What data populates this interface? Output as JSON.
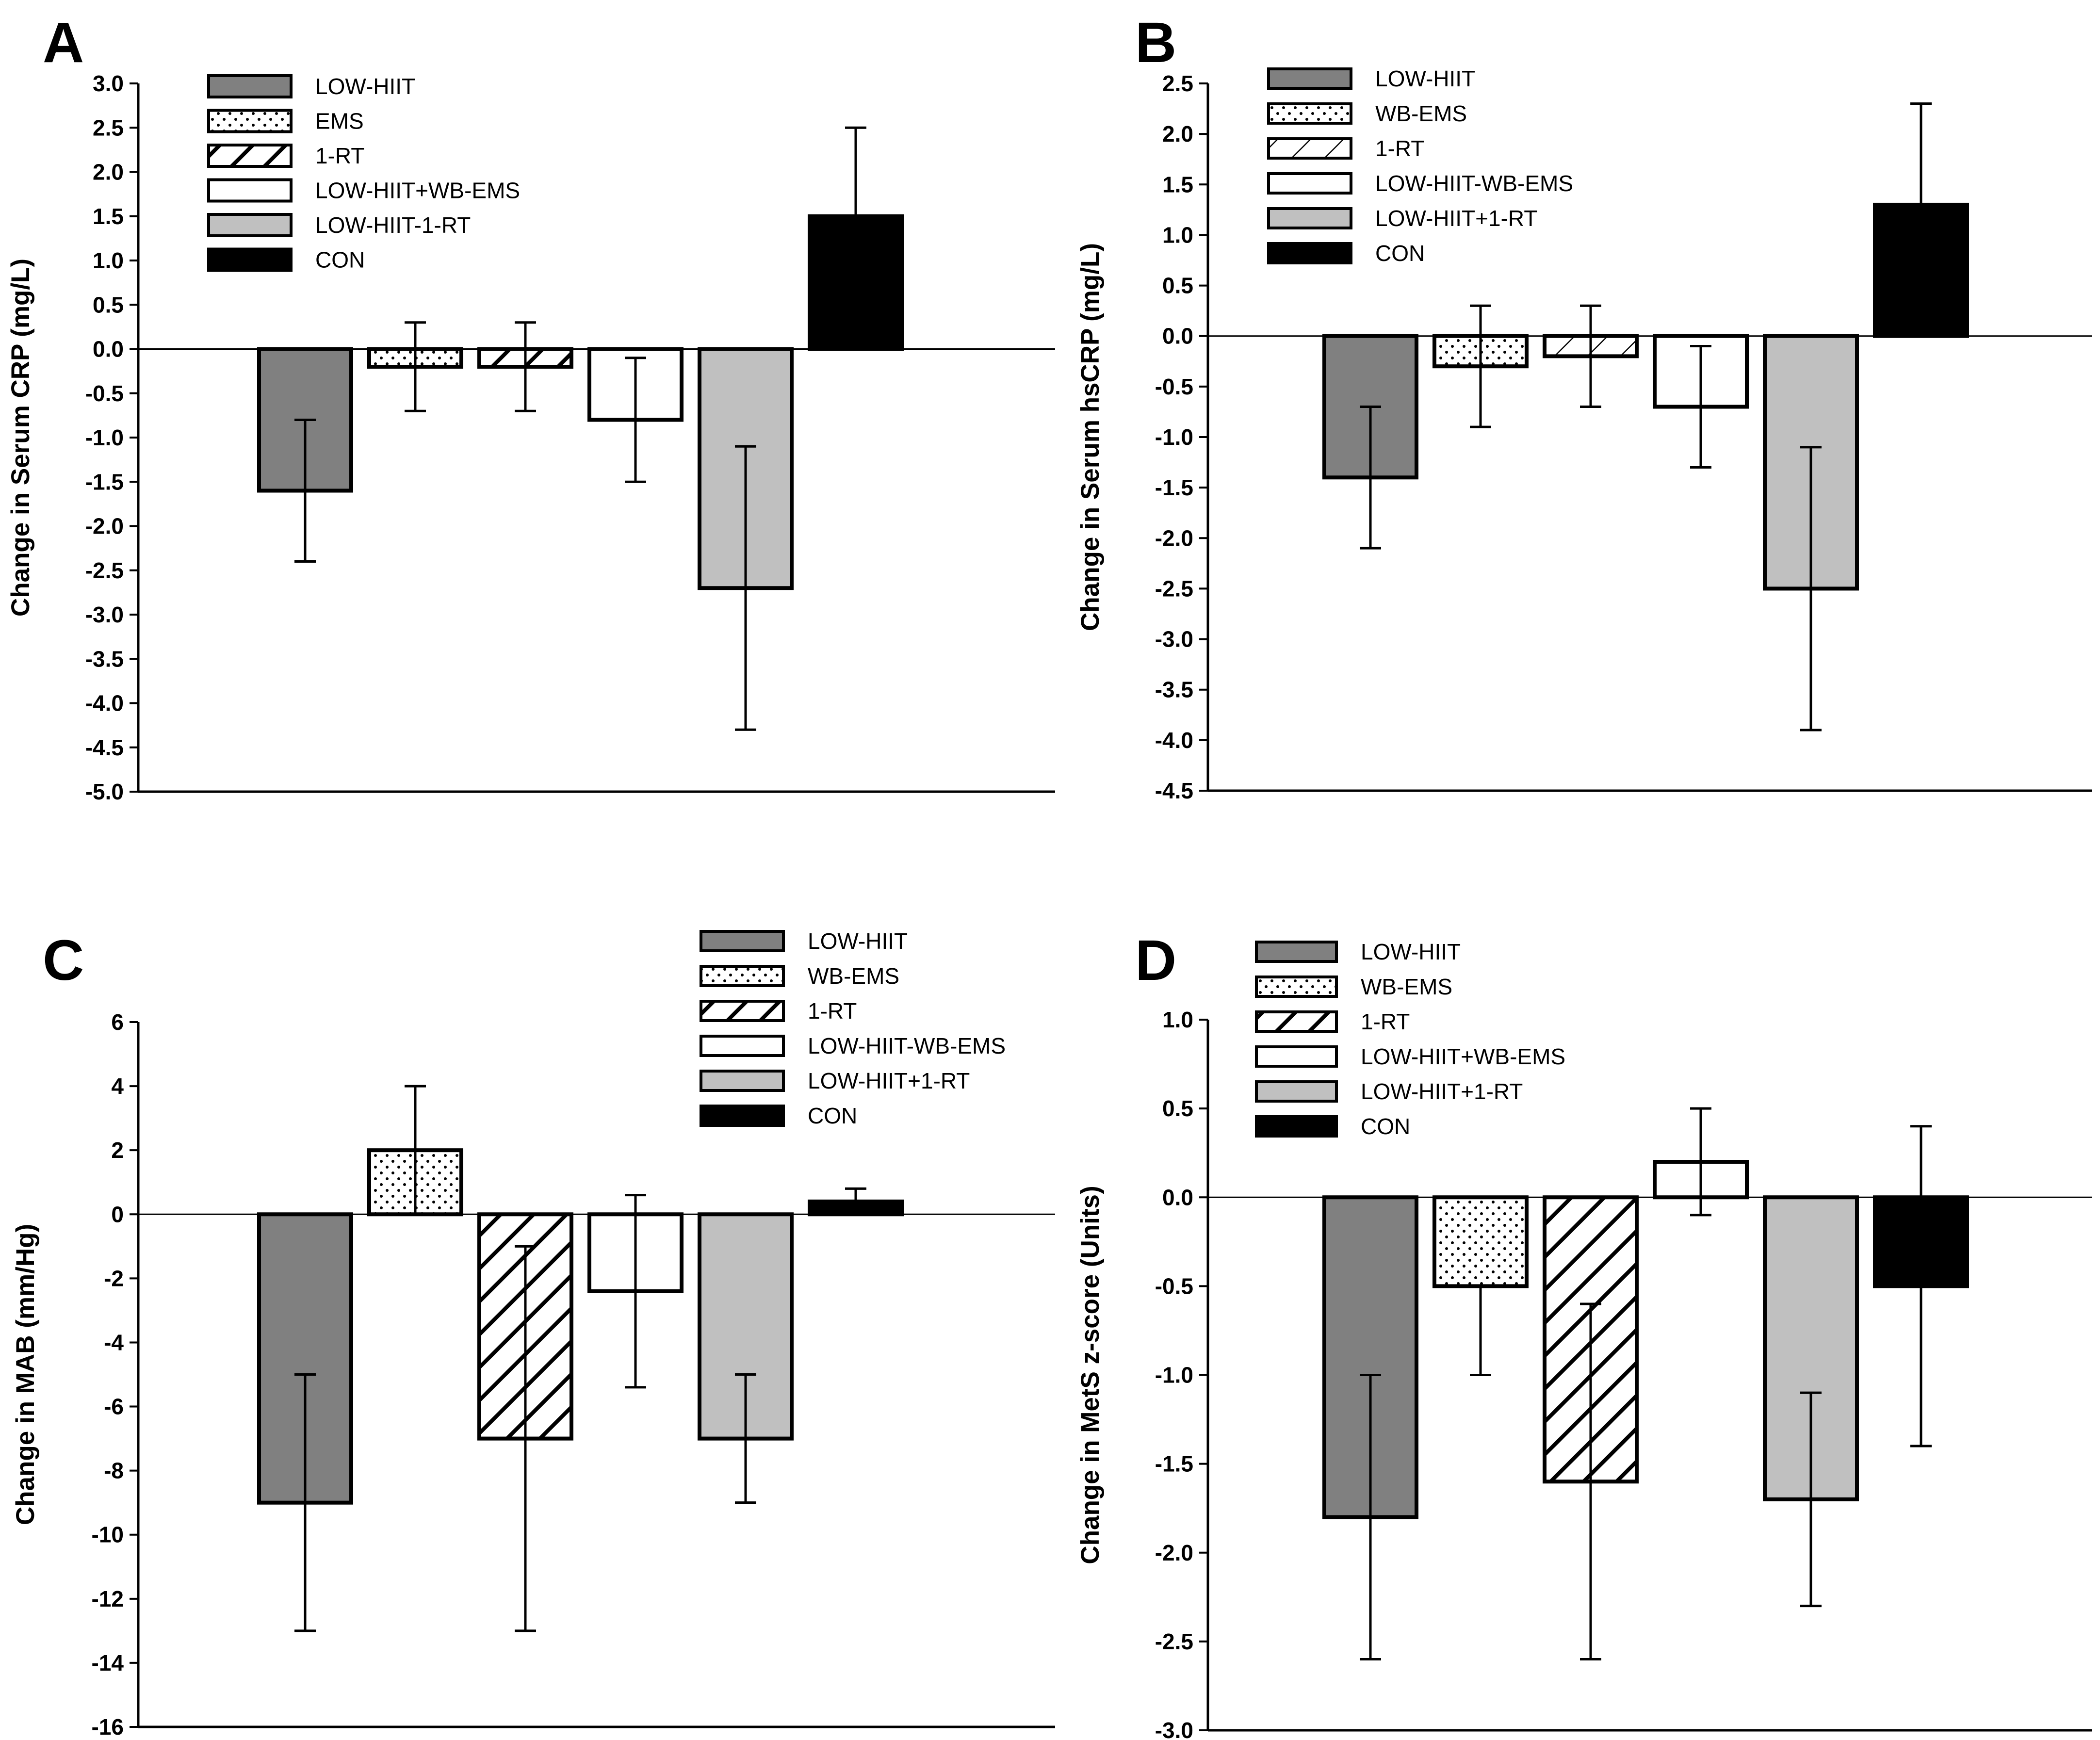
{
  "figure": {
    "background": "#ffffff"
  },
  "chart_data": [
    {
      "type": "bar",
      "panel": "A",
      "ylabel": "Change in Serum CRP (mg/L)",
      "ylim": [
        -5.0,
        3.0
      ],
      "ytick_step": 0.5,
      "ytick_decimals": 1,
      "categories": [
        "LOW-HIIT",
        "EMS",
        "1-RT",
        "LOW-HIIT+WB-EMS",
        "LOW-HIIT-1-RT",
        "CON"
      ],
      "series": [
        {
          "name": "LOW-HIIT",
          "value": -1.6,
          "error_low": -2.4,
          "error_high": -0.8,
          "fill": "gray"
        },
        {
          "name": "EMS",
          "value": -0.2,
          "error_low": -0.7,
          "error_high": 0.3,
          "fill": "dots"
        },
        {
          "name": "1-RT",
          "value": -0.2,
          "error_low": -0.7,
          "error_high": 0.3,
          "fill": "hatch"
        },
        {
          "name": "LOW-HIIT+WB-EMS",
          "value": -0.8,
          "error_low": -1.5,
          "error_high": -0.1,
          "fill": "white"
        },
        {
          "name": "LOW-HIIT-1-RT",
          "value": -2.7,
          "error_low": -4.3,
          "error_high": -1.1,
          "fill": "lightgray"
        },
        {
          "name": "CON",
          "value": 1.5,
          "error_low": 1.5,
          "error_high": 2.5,
          "fill": "black"
        }
      ],
      "legend": [
        {
          "label": "LOW-HIIT",
          "fill": "gray"
        },
        {
          "label": "EMS",
          "fill": "dots"
        },
        {
          "label": "1-RT",
          "fill": "hatch"
        },
        {
          "label": "LOW-HIIT+WB-EMS",
          "fill": "white"
        },
        {
          "label": "LOW-HIIT-1-RT",
          "fill": "lightgray"
        },
        {
          "label": "CON",
          "fill": "black"
        }
      ]
    },
    {
      "type": "bar",
      "panel": "B",
      "ylabel": "Change in Serum hsCRP (mg/L)",
      "ylim": [
        -4.5,
        2.5
      ],
      "ytick_step": 0.5,
      "ytick_decimals": 1,
      "categories": [
        "LOW-HIIT",
        "WB-EMS",
        "1-RT",
        "LOW-HIIT-WB-EMS",
        "LOW-HIIT+1-RT",
        "CON"
      ],
      "series": [
        {
          "name": "LOW-HIIT",
          "value": -1.4,
          "error_low": -2.1,
          "error_high": -0.7,
          "fill": "gray"
        },
        {
          "name": "WB-EMS",
          "value": -0.3,
          "error_low": -0.9,
          "error_high": 0.3,
          "fill": "dots"
        },
        {
          "name": "1-RT",
          "value": -0.2,
          "error_low": -0.7,
          "error_high": 0.3,
          "fill": "hatch-light"
        },
        {
          "name": "LOW-HIIT-WB-EMS",
          "value": -0.7,
          "error_low": -1.3,
          "error_high": -0.1,
          "fill": "white"
        },
        {
          "name": "LOW-HIIT+1-RT",
          "value": -2.5,
          "error_low": -3.9,
          "error_high": -1.1,
          "fill": "lightgray"
        },
        {
          "name": "CON",
          "value": 1.3,
          "error_low": 1.3,
          "error_high": 2.3,
          "fill": "black"
        }
      ],
      "legend": [
        {
          "label": "LOW-HIIT",
          "fill": "gray"
        },
        {
          "label": "WB-EMS",
          "fill": "dots"
        },
        {
          "label": "1-RT",
          "fill": "hatch-light"
        },
        {
          "label": "LOW-HIIT-WB-EMS",
          "fill": "white"
        },
        {
          "label": "LOW-HIIT+1-RT",
          "fill": "lightgray"
        },
        {
          "label": "CON",
          "fill": "black"
        }
      ]
    },
    {
      "type": "bar",
      "panel": "C",
      "ylabel": "Change in MAB (mm/Hg)",
      "ylim": [
        -16,
        6
      ],
      "ytick_step": 2,
      "ytick_decimals": 0,
      "categories": [
        "LOW-HIIT",
        "WB-EMS",
        "1-RT",
        "LOW-HIIT-WB-EMS",
        "LOW-HIIT+1-RT",
        "CON"
      ],
      "series": [
        {
          "name": "LOW-HIIT",
          "value": -9,
          "error_low": -13,
          "error_high": -5,
          "fill": "gray"
        },
        {
          "name": "WB-EMS",
          "value": 2,
          "error_low": 0,
          "error_high": 4,
          "fill": "dots"
        },
        {
          "name": "1-RT",
          "value": -7,
          "error_low": -13,
          "error_high": -1,
          "fill": "hatch"
        },
        {
          "name": "LOW-HIIT-WB-EMS",
          "value": -2.4,
          "error_low": -5.4,
          "error_high": 0.6,
          "fill": "white"
        },
        {
          "name": "LOW-HIIT+1-RT",
          "value": -7,
          "error_low": -9,
          "error_high": -5,
          "fill": "lightgray"
        },
        {
          "name": "CON",
          "value": 0.4,
          "error_low": 0.4,
          "error_high": 0.8,
          "fill": "black"
        }
      ],
      "legend": [
        {
          "label": "LOW-HIIT",
          "fill": "gray"
        },
        {
          "label": "WB-EMS",
          "fill": "dots"
        },
        {
          "label": "1-RT",
          "fill": "hatch"
        },
        {
          "label": "LOW-HIIT-WB-EMS",
          "fill": "white"
        },
        {
          "label": "LOW-HIIT+1-RT",
          "fill": "lightgray"
        },
        {
          "label": "CON",
          "fill": "black"
        }
      ]
    },
    {
      "type": "bar",
      "panel": "D",
      "ylabel": "Change in MetS z-score (Units)",
      "ylim": [
        -3.0,
        1.0
      ],
      "ytick_step": 0.5,
      "ytick_decimals": 1,
      "categories": [
        "LOW-HIIT",
        "WB-EMS",
        "1-RT",
        "LOW-HIIT+WB-EMS",
        "LOW-HIIT+1-RT",
        "CON"
      ],
      "series": [
        {
          "name": "LOW-HIIT",
          "value": -1.8,
          "error_low": -2.6,
          "error_high": -1.0,
          "fill": "gray"
        },
        {
          "name": "WB-EMS",
          "value": -0.5,
          "error_low": -1.0,
          "error_high": -0.5,
          "fill": "dots"
        },
        {
          "name": "1-RT",
          "value": -1.6,
          "error_low": -2.6,
          "error_high": -0.6,
          "fill": "hatch"
        },
        {
          "name": "LOW-HIIT+WB-EMS",
          "value": 0.2,
          "error_low": -0.1,
          "error_high": 0.5,
          "fill": "white"
        },
        {
          "name": "LOW-HIIT+1-RT",
          "value": -1.7,
          "error_low": -2.3,
          "error_high": -1.1,
          "fill": "lightgray"
        },
        {
          "name": "CON",
          "value": -0.5,
          "error_low": -1.4,
          "error_high": 0.4,
          "fill": "black"
        }
      ],
      "legend": [
        {
          "label": "LOW-HIIT",
          "fill": "gray"
        },
        {
          "label": "WB-EMS",
          "fill": "dots"
        },
        {
          "label": "1-RT",
          "fill": "hatch"
        },
        {
          "label": "LOW-HIIT+WB-EMS",
          "fill": "white"
        },
        {
          "label": "LOW-HIIT+1-RT",
          "fill": "lightgray"
        },
        {
          "label": "CON",
          "fill": "black"
        }
      ]
    }
  ],
  "colors": {
    "gray": "#808080",
    "lightgray": "#c0c0c0",
    "white": "#ffffff",
    "black": "#000000",
    "axis": "#000000"
  }
}
